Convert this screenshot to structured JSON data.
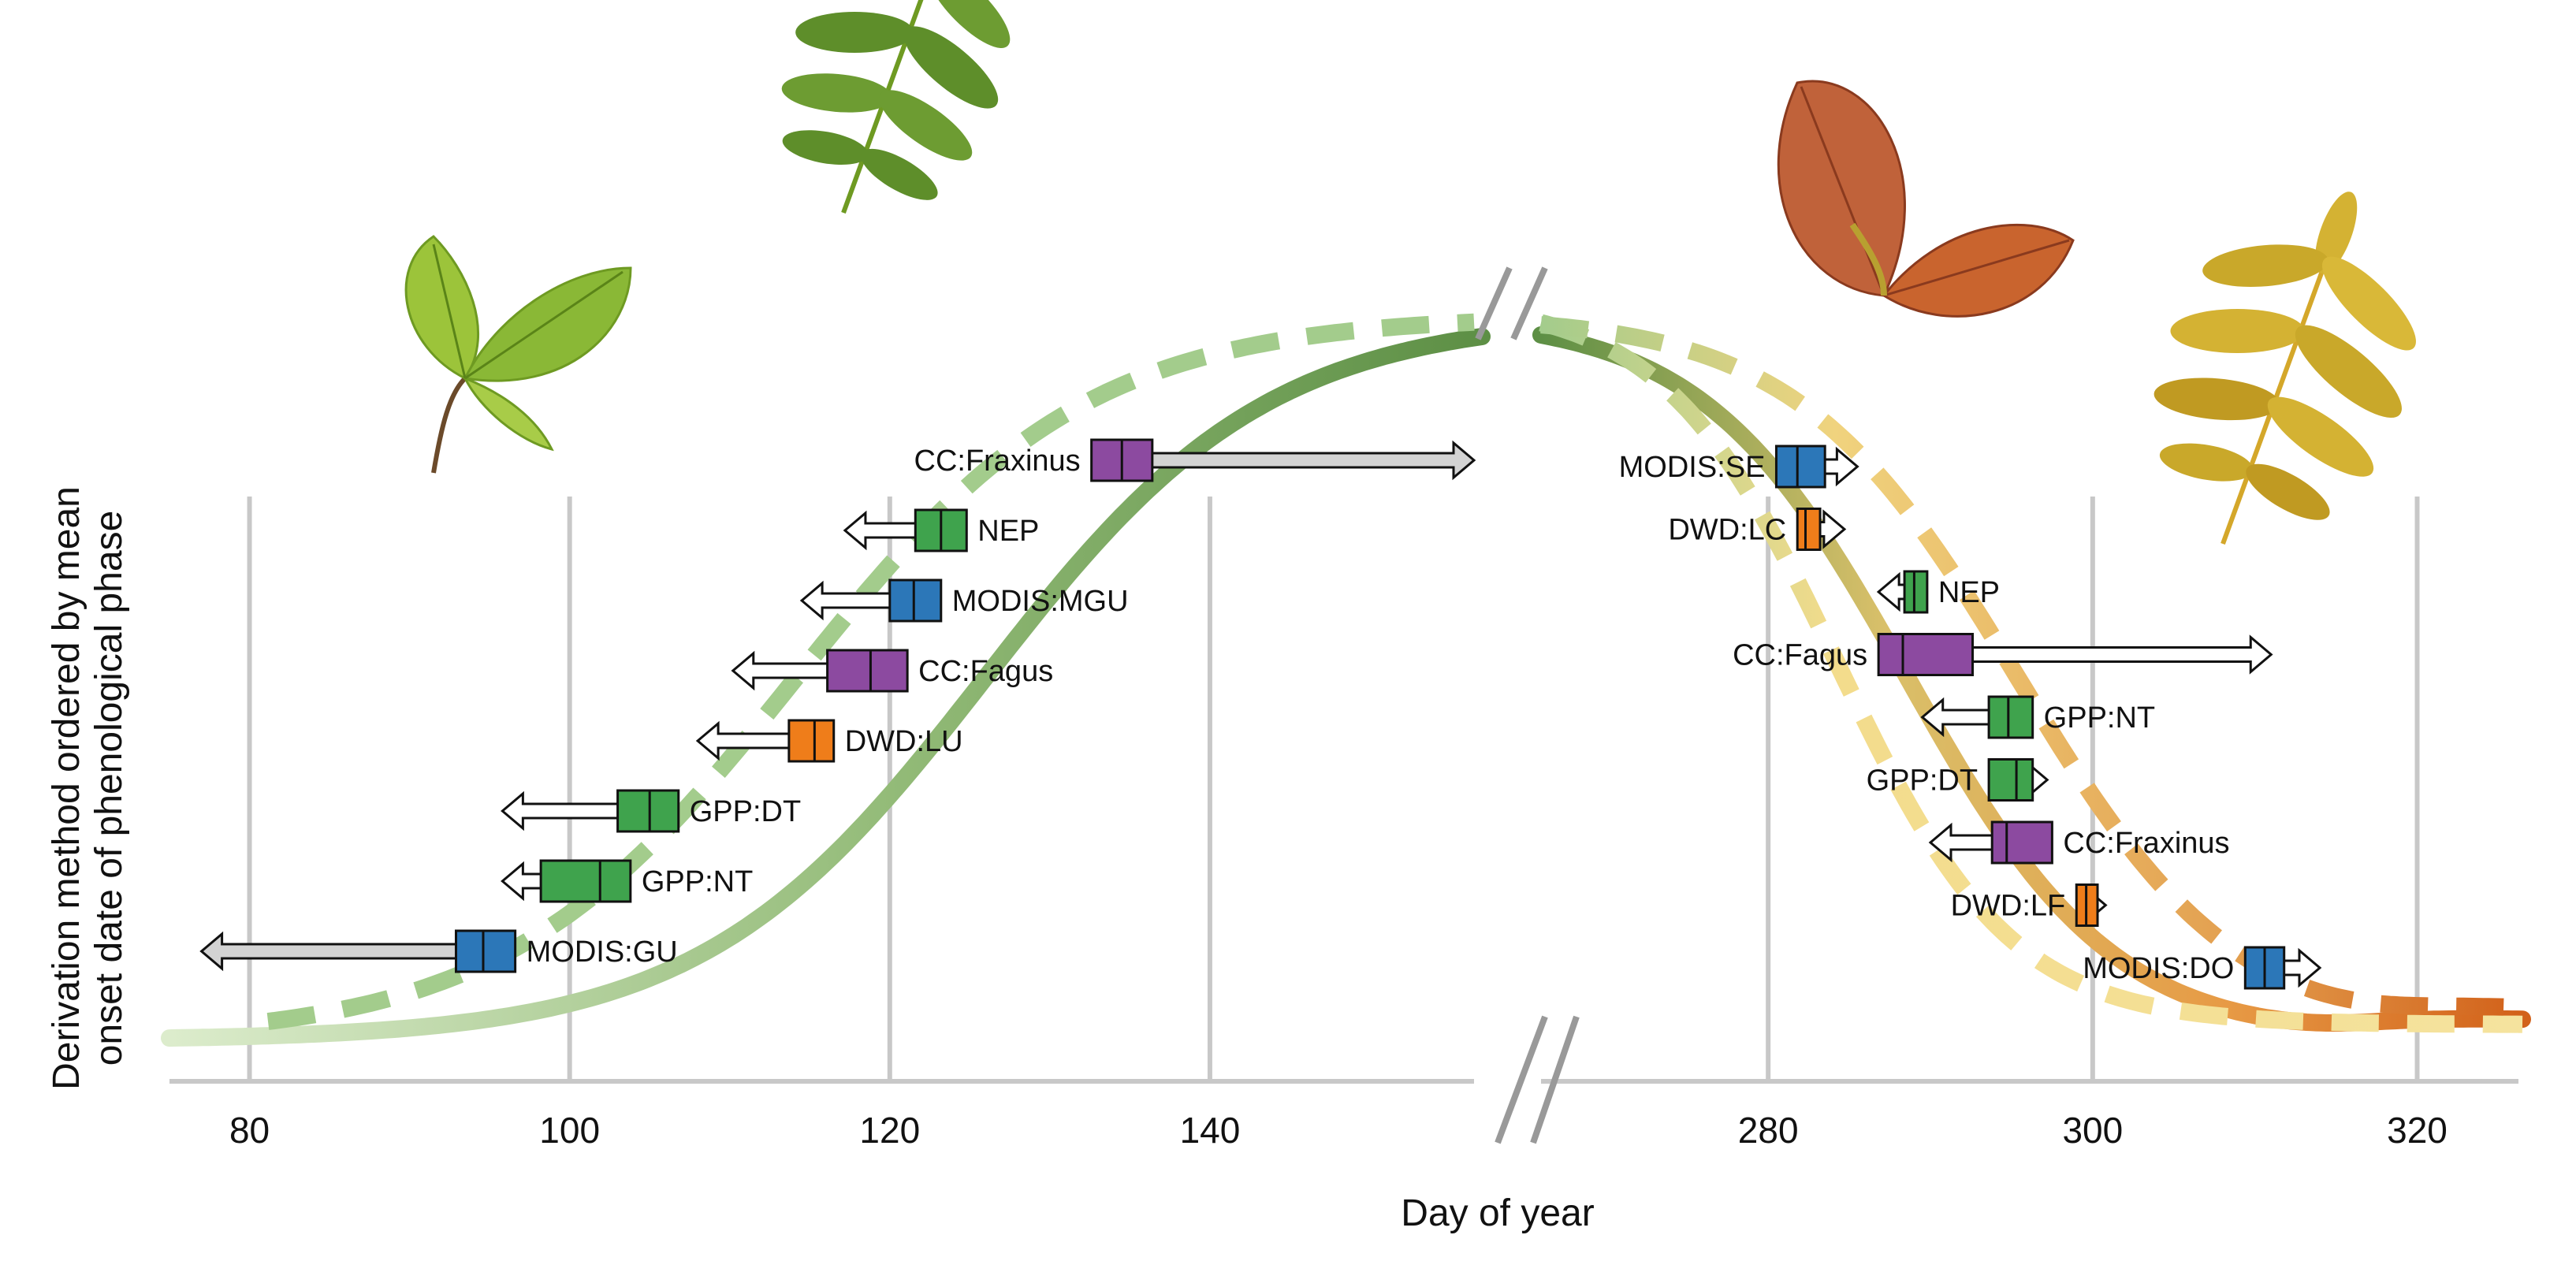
{
  "chart_data": {
    "type": "interval",
    "xlabel": "Day of year",
    "ylabel_line1": "Derivation method ordered by mean",
    "ylabel_line2": "onset date of phenological phase",
    "grid": "vertical",
    "x_axis_break": true,
    "spring": {
      "xlim": [
        75,
        157
      ],
      "ticks": [
        80,
        100,
        120,
        140
      ],
      "methods": [
        {
          "name": "CC:Fraxinus",
          "mean": 134.5,
          "box_lo": 132.6,
          "box_hi": 136.4,
          "arrow_to": 156.5,
          "arrow": "later",
          "color": "#8c4aa0",
          "arrow_fill": "#d3d3d3",
          "label_side": "left"
        },
        {
          "name": "NEP",
          "mean": 123.2,
          "box_lo": 121.6,
          "box_hi": 124.8,
          "arrow_to": 117.2,
          "arrow": "earlier",
          "color": "#3fa34d",
          "arrow_fill": "#ffffff",
          "label_side": "right"
        },
        {
          "name": "MODIS:MGU",
          "mean": 121.5,
          "box_lo": 120.0,
          "box_hi": 123.2,
          "arrow_to": 114.5,
          "arrow": "earlier",
          "color": "#2c77b8",
          "arrow_fill": "#ffffff",
          "label_side": "right"
        },
        {
          "name": "CC:Fagus",
          "mean": 118.8,
          "box_lo": 116.1,
          "box_hi": 121.1,
          "arrow_to": 110.2,
          "arrow": "earlier",
          "color": "#8c4aa0",
          "arrow_fill": "#ffffff",
          "label_side": "right"
        },
        {
          "name": "DWD:LU",
          "mean": 115.3,
          "box_lo": 113.7,
          "box_hi": 116.5,
          "arrow_to": 108.0,
          "arrow": "earlier",
          "color": "#ef7d1a",
          "arrow_fill": "#ffffff",
          "label_side": "right"
        },
        {
          "name": "GPP:DT",
          "mean": 105.0,
          "box_lo": 103.0,
          "box_hi": 106.8,
          "arrow_to": 95.8,
          "arrow": "earlier",
          "color": "#3fa34d",
          "arrow_fill": "#ffffff",
          "label_side": "right"
        },
        {
          "name": "GPP:NT",
          "mean": 101.9,
          "box_lo": 98.2,
          "box_hi": 103.8,
          "arrow_to": 95.8,
          "arrow": "earlier",
          "color": "#3fa34d",
          "arrow_fill": "#ffffff",
          "label_side": "right"
        },
        {
          "name": "MODIS:GU",
          "mean": 94.6,
          "box_lo": 92.9,
          "box_hi": 96.6,
          "arrow_to": 77.0,
          "arrow": "earlier",
          "color": "#2c77b8",
          "arrow_fill": "#d3d3d3",
          "label_side": "right"
        }
      ]
    },
    "autumn": {
      "xlim": [
        266,
        326
      ],
      "ticks": [
        280,
        300,
        320
      ],
      "methods": [
        {
          "name": "MODIS:SE",
          "mean": 281.8,
          "box_lo": 280.5,
          "box_hi": 283.5,
          "arrow_to": 285.5,
          "arrow": "later",
          "color": "#2c77b8",
          "arrow_fill": "#ffffff",
          "label_side": "left"
        },
        {
          "name": "DWD:LC",
          "mean": 282.3,
          "box_lo": 281.8,
          "box_hi": 283.2,
          "arrow_to": 284.7,
          "arrow": "later",
          "color": "#ef7d1a",
          "arrow_fill": "#ffffff",
          "label_side": "left"
        },
        {
          "name": "NEP",
          "mean": 289.0,
          "box_lo": 288.4,
          "box_hi": 289.8,
          "arrow_to": 286.8,
          "arrow": "earlier",
          "color": "#3fa34d",
          "arrow_fill": "#ffffff",
          "label_side": "right"
        },
        {
          "name": "CC:Fagus",
          "mean": 288.3,
          "box_lo": 286.8,
          "box_hi": 292.6,
          "arrow_to": 311.0,
          "arrow": "later",
          "color": "#8c4aa0",
          "arrow_fill": "#ffffff",
          "label_side": "left"
        },
        {
          "name": "GPP:NT",
          "mean": 294.8,
          "box_lo": 293.6,
          "box_hi": 296.3,
          "arrow_to": 289.5,
          "arrow": "earlier",
          "color": "#3fa34d",
          "arrow_fill": "#ffffff",
          "label_side": "right"
        },
        {
          "name": "GPP:DT",
          "mean": 295.3,
          "box_lo": 293.6,
          "box_hi": 296.3,
          "arrow_to": 297.2,
          "arrow": "later",
          "color": "#3fa34d",
          "arrow_fill": "#ffffff",
          "label_side": "left"
        },
        {
          "name": "CC:Fraxinus",
          "mean": 294.7,
          "box_lo": 293.8,
          "box_hi": 297.5,
          "arrow_to": 290.0,
          "arrow": "earlier",
          "color": "#8c4aa0",
          "arrow_fill": "#ffffff",
          "label_side": "right"
        },
        {
          "name": "DWD:LF",
          "mean": 299.6,
          "box_lo": 299.0,
          "box_hi": 300.3,
          "arrow_to": 300.8,
          "arrow": "later",
          "color": "#ef7d1a",
          "arrow_fill": "#ffffff",
          "label_side": "left"
        },
        {
          "name": "MODIS:DO",
          "mean": 310.6,
          "box_lo": 309.4,
          "box_hi": 311.8,
          "arrow_to": 314.0,
          "arrow": "later",
          "color": "#2c77b8",
          "arrow_fill": "#ffffff",
          "label_side": "left"
        }
      ]
    }
  },
  "colors": {
    "grid": "#c8c8c8",
    "axis": "#c8c8c8",
    "break_marks": "#999999",
    "spring_curve": "#5d8f45",
    "spring_curve_light": "#dceccc",
    "spring_dash": "#a3cc8c",
    "autumn_curve": "#e08a3c",
    "autumn_dash_yellow": "#f3dc8c",
    "autumn_dash_orange": "#df8f3a"
  },
  "icons": [
    "beech-leaf-spring-icon",
    "ash-leaf-spring-icon",
    "beech-leaf-autumn-icon",
    "ash-leaf-autumn-icon"
  ]
}
